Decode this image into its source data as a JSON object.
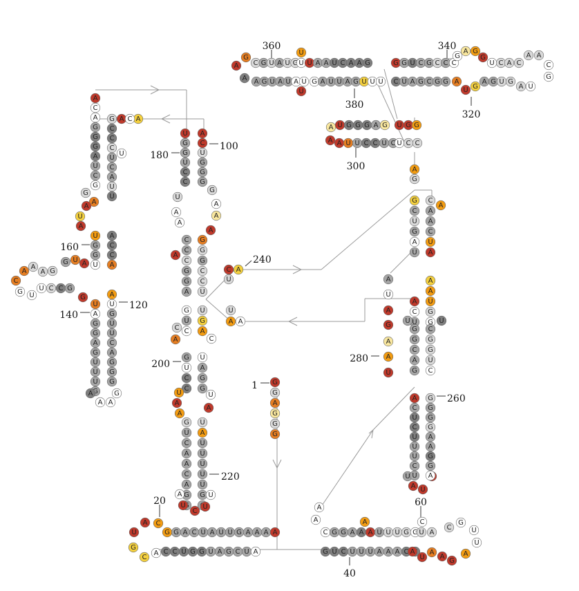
{
  "diagram": {
    "color_key": {
      "dark_red": "#c0392b",
      "orange_red": "#e67e22",
      "orange": "#f39c12",
      "yellow": "#f4d03f",
      "pale_yellow": "#f9e79f",
      "dark_gray": "#7f7f7f",
      "mid_gray": "#a6a6a6",
      "light_gray": "#d9d9d9",
      "white": "#ffffff",
      "line": "#999999"
    },
    "position_labels": [
      "360",
      "340",
      "380",
      "320",
      "100",
      "180",
      "300",
      "240",
      "160",
      "120",
      "140",
      "200",
      "280",
      "260",
      "1",
      "220",
      "20",
      "60",
      "40"
    ]
  }
}
